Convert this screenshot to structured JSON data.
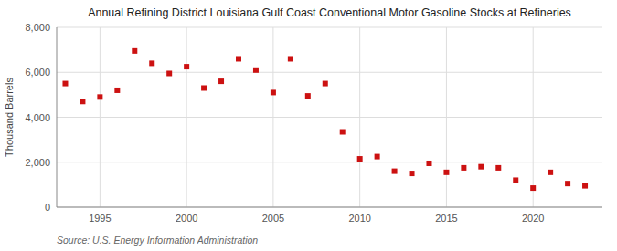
{
  "chart_data": {
    "type": "scatter",
    "title": "Annual Refining District Louisiana Gulf Coast Conventional Motor Gasoline Stocks at Refineries",
    "ylabel": "Thousand Barrels",
    "source": "Source: U.S. Energy Information Administration",
    "x": [
      1993,
      1994,
      1995,
      1996,
      1997,
      1998,
      1999,
      2000,
      2001,
      2002,
      2003,
      2004,
      2005,
      2006,
      2007,
      2008,
      2009,
      2010,
      2011,
      2012,
      2013,
      2014,
      2015,
      2016,
      2017,
      2018,
      2019,
      2020,
      2021,
      2022,
      2023
    ],
    "values": [
      5500,
      4700,
      4900,
      5200,
      6950,
      6400,
      5950,
      6250,
      5300,
      5600,
      6600,
      6100,
      5100,
      6600,
      4950,
      5500,
      3350,
      2150,
      2250,
      1600,
      1500,
      1950,
      1550,
      1750,
      1800,
      1750,
      1200,
      850,
      1550,
      1050,
      950
    ],
    "color": "#cc1111",
    "marker": "square",
    "grid": true,
    "xlim": [
      1992.5,
      2024
    ],
    "xticks": [
      1995,
      2000,
      2005,
      2010,
      2015,
      2020
    ],
    "ylim": [
      0,
      8000
    ],
    "yticks": [
      0,
      {
        "value": 2000,
        "label": "2,000"
      },
      {
        "value": 4000,
        "label": "4,000"
      },
      {
        "value": 6000,
        "label": "6,000"
      },
      {
        "value": 8000,
        "label": "8,000"
      }
    ]
  }
}
